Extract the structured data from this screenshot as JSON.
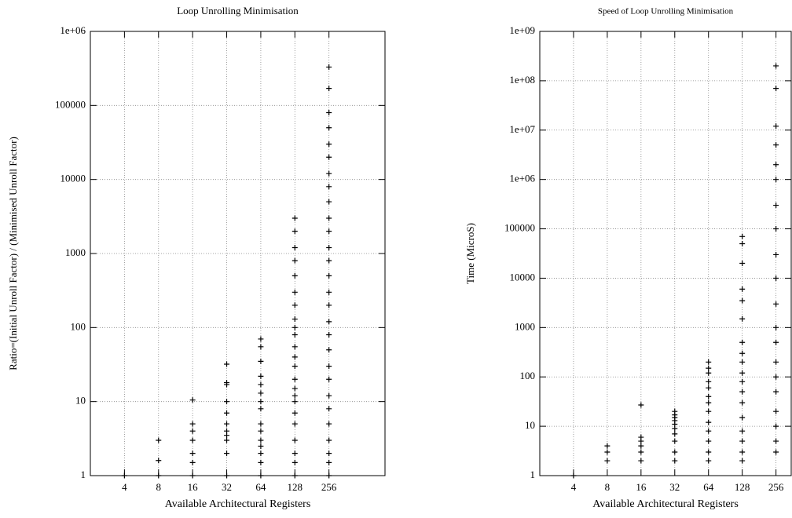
{
  "chart_data": [
    {
      "type": "scatter",
      "title": "Loop Unrolling Minimisation",
      "xlabel": "Available Architectural Registers",
      "ylabel": "Ratio=(Initial Unroll Factor) / (Minimised Unroll Factor)",
      "xscale": "log",
      "yscale": "log",
      "grid": true,
      "color": "#000000",
      "xlim": [
        2,
        800
      ],
      "ylim": [
        1,
        1000000
      ],
      "xticks": [
        4,
        8,
        16,
        32,
        64,
        128,
        256
      ],
      "yticks": [
        1,
        10,
        100,
        1000,
        10000,
        100000,
        {
          "value": 1000000,
          "label": "1e+06"
        }
      ],
      "x": [
        4,
        8,
        8,
        8,
        16,
        16,
        16,
        16,
        16,
        16,
        16,
        32,
        32,
        32,
        32,
        32,
        32,
        32,
        32,
        32,
        32,
        32,
        64,
        64,
        64,
        64,
        64,
        64,
        64,
        64,
        64,
        64,
        64,
        64,
        64,
        64,
        64,
        128,
        128,
        128,
        128,
        128,
        128,
        128,
        128,
        128,
        128,
        128,
        128,
        128,
        128,
        128,
        128,
        128,
        128,
        128,
        128,
        128,
        128,
        128,
        256,
        256,
        256,
        256,
        256,
        256,
        256,
        256,
        256,
        256,
        256,
        256,
        256,
        256,
        256,
        256,
        256,
        256,
        256,
        256,
        256,
        256,
        256,
        256,
        256,
        256,
        256,
        256
      ],
      "values": [
        1,
        1,
        1.6,
        3,
        1,
        1.5,
        2,
        3,
        4,
        5,
        10.5,
        1,
        2,
        3,
        3.5,
        4,
        5,
        7,
        10,
        17,
        18,
        32,
        1,
        1.5,
        2,
        2.5,
        3,
        4,
        5,
        8,
        10,
        13,
        17,
        22,
        35,
        55,
        70,
        1,
        1.5,
        2,
        3,
        5,
        7,
        10,
        12,
        15,
        20,
        30,
        40,
        55,
        80,
        100,
        130,
        200,
        300,
        500,
        800,
        1200,
        2000,
        3000,
        1,
        1.5,
        2,
        3,
        5,
        8,
        12,
        20,
        30,
        50,
        80,
        120,
        200,
        300,
        500,
        800,
        1200,
        2000,
        3000,
        5000,
        8000,
        12000,
        20000,
        30000,
        50000,
        80000,
        170000,
        330000
      ]
    },
    {
      "type": "scatter",
      "title": "Speed of Loop Unrolling Minimisation",
      "xlabel": "Available Architectural Registers",
      "ylabel": "Time (MicroS)",
      "xscale": "log",
      "yscale": "log",
      "grid": true,
      "color": "#000000",
      "xlim": [
        2,
        350
      ],
      "ylim": [
        1,
        1000000000
      ],
      "xticks": [
        4,
        8,
        16,
        32,
        64,
        128,
        256
      ],
      "yticks": [
        1,
        10,
        100,
        1000,
        10000,
        100000,
        {
          "value": 1000000,
          "label": "1e+06"
        },
        {
          "value": 10000000,
          "label": "1e+07"
        },
        {
          "value": 100000000,
          "label": "1e+08"
        },
        {
          "value": 1000000000,
          "label": "1e+09"
        }
      ],
      "x": [
        4,
        8,
        8,
        8,
        16,
        16,
        16,
        16,
        16,
        16,
        32,
        32,
        32,
        32,
        32,
        32,
        32,
        32,
        32,
        32,
        64,
        64,
        64,
        64,
        64,
        64,
        64,
        64,
        64,
        64,
        64,
        64,
        64,
        128,
        128,
        128,
        128,
        128,
        128,
        128,
        128,
        128,
        128,
        128,
        128,
        128,
        128,
        128,
        128,
        128,
        128,
        256,
        256,
        256,
        256,
        256,
        256,
        256,
        256,
        256,
        256,
        256,
        256,
        256,
        256,
        256,
        256,
        256,
        256,
        256,
        256
      ],
      "values": [
        1,
        2,
        3,
        4,
        2,
        3,
        4,
        5,
        6,
        27,
        2,
        3,
        5,
        7,
        9,
        11,
        13,
        15,
        17,
        20,
        2,
        3,
        5,
        8,
        12,
        20,
        30,
        40,
        60,
        80,
        120,
        150,
        200,
        2,
        3,
        5,
        8,
        15,
        30,
        50,
        80,
        120,
        200,
        300,
        500,
        1500,
        3500,
        6000,
        20000,
        50000,
        70000,
        3,
        5,
        10,
        20,
        50,
        100,
        200,
        500,
        1000,
        3000,
        10000,
        30000,
        100000,
        300000,
        1000000,
        2000000,
        5000000,
        12000000,
        70000000,
        200000000
      ]
    }
  ]
}
